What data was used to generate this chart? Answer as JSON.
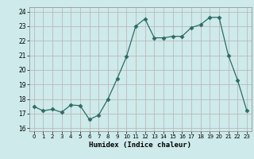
{
  "x": [
    0,
    1,
    2,
    3,
    4,
    5,
    6,
    7,
    8,
    9,
    10,
    11,
    12,
    13,
    14,
    15,
    16,
    17,
    18,
    19,
    20,
    21,
    22,
    23
  ],
  "y": [
    17.5,
    17.2,
    17.3,
    17.1,
    17.6,
    17.55,
    16.6,
    16.9,
    18.0,
    19.4,
    20.9,
    23.0,
    23.5,
    22.2,
    22.2,
    22.3,
    22.3,
    22.9,
    23.1,
    23.6,
    23.6,
    21.0,
    19.3,
    17.2
  ],
  "xlabel": "Humidex (Indice chaleur)",
  "xlim": [
    -0.5,
    23.5
  ],
  "ylim": [
    15.8,
    24.3
  ],
  "yticks": [
    16,
    17,
    18,
    19,
    20,
    21,
    22,
    23,
    24
  ],
  "xticks": [
    0,
    1,
    2,
    3,
    4,
    5,
    6,
    7,
    8,
    9,
    10,
    11,
    12,
    13,
    14,
    15,
    16,
    17,
    18,
    19,
    20,
    21,
    22,
    23
  ],
  "line_color": "#2d6b65",
  "marker": "D",
  "marker_size": 2.5,
  "bg_color": "#ceeaea",
  "grid_color": "#b8b0b0",
  "fig_bg": "#ceeaea"
}
